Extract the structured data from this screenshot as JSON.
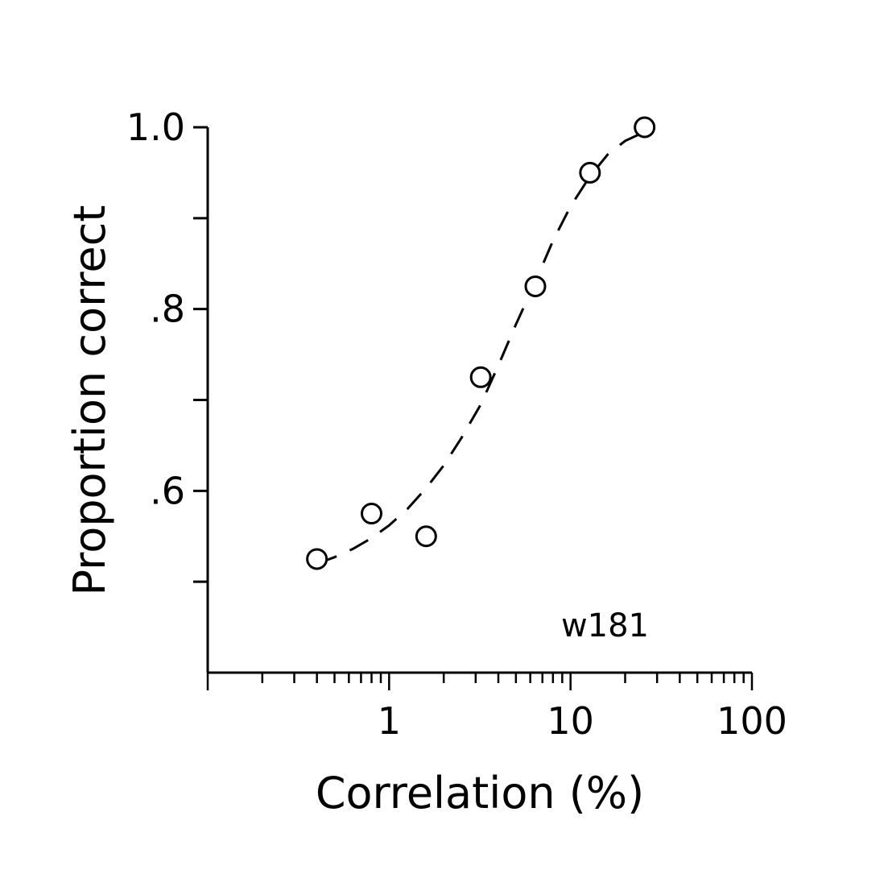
{
  "chart_data": {
    "type": "scatter",
    "xlabel": "Correlation (%)",
    "ylabel": "Proportion correct",
    "x_scale": "log",
    "xlim": [
      0.1,
      100
    ],
    "ylim": [
      0.4,
      1.0
    ],
    "x_ticks": [
      {
        "value": 1,
        "label": "1"
      },
      {
        "value": 10,
        "label": "10"
      },
      {
        "value": 100,
        "label": "100"
      }
    ],
    "y_ticks": [
      {
        "value": 0.5,
        "label": ""
      },
      {
        "value": 0.6,
        "label": ".6"
      },
      {
        "value": 0.7,
        "label": ""
      },
      {
        "value": 0.8,
        "label": ".8"
      },
      {
        "value": 0.9,
        "label": ""
      },
      {
        "value": 1.0,
        "label": "1.0"
      }
    ],
    "grid": false,
    "legend": "none",
    "annotation": "w181",
    "points": [
      {
        "x": 0.4,
        "y": 0.525
      },
      {
        "x": 0.8,
        "y": 0.575
      },
      {
        "x": 1.6,
        "y": 0.55
      },
      {
        "x": 3.2,
        "y": 0.725
      },
      {
        "x": 6.4,
        "y": 0.825
      },
      {
        "x": 12.8,
        "y": 0.95
      },
      {
        "x": 25.6,
        "y": 1.0
      }
    ],
    "fit_curve": {
      "style": "dashed",
      "x": [
        0.4,
        0.5,
        0.63,
        0.8,
        1.0,
        1.26,
        1.6,
        2.0,
        2.5,
        3.2,
        4.0,
        5.0,
        6.4,
        8.0,
        10.0,
        12.8,
        16.0,
        20.0,
        25.6
      ],
      "y": [
        0.52,
        0.527,
        0.536,
        0.548,
        0.562,
        0.58,
        0.603,
        0.628,
        0.658,
        0.695,
        0.738,
        0.783,
        0.83,
        0.875,
        0.913,
        0.946,
        0.97,
        0.985,
        0.995
      ]
    },
    "colors": {
      "ink": "#000000",
      "background": "#ffffff"
    }
  }
}
